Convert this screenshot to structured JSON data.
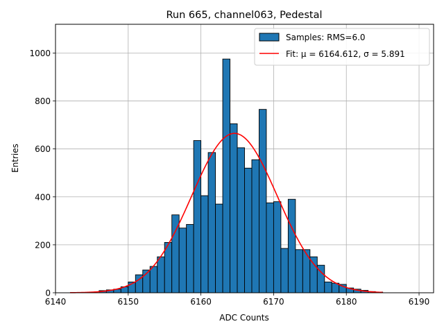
{
  "chart_data": {
    "type": "bar",
    "title": "Run 665, channel063, Pedestal",
    "xlabel": "ADC Counts",
    "ylabel": "Entries",
    "xlim": [
      6140,
      6192
    ],
    "ylim": [
      0,
      1120
    ],
    "xticks": [
      6140,
      6150,
      6160,
      6170,
      6180,
      6190
    ],
    "yticks": [
      0,
      200,
      400,
      600,
      800,
      1000
    ],
    "grid": true,
    "legend_position": "top-right",
    "hist": {
      "name": "Samples: RMS=6.0",
      "color": "#1f77b4",
      "edge_color": "#000000",
      "bin_edges": [
        6146,
        6147,
        6148,
        6149,
        6150,
        6151,
        6152,
        6153,
        6154,
        6155,
        6156,
        6157,
        6158,
        6159,
        6160,
        6161,
        6162,
        6163,
        6164,
        6165,
        6166,
        6167,
        6168,
        6169,
        6170,
        6171,
        6172,
        6173,
        6174,
        6175,
        6176,
        6177,
        6178,
        6179,
        6180,
        6181,
        6182,
        6183,
        6184,
        6185
      ],
      "counts": [
        9,
        12,
        15,
        25,
        45,
        75,
        95,
        110,
        150,
        210,
        325,
        270,
        285,
        635,
        405,
        585,
        370,
        975,
        705,
        605,
        520,
        555,
        765,
        375,
        380,
        185,
        390,
        180,
        180,
        150,
        115,
        45,
        40,
        35,
        20,
        15,
        10,
        5,
        3
      ]
    },
    "fit": {
      "name": "Fit: μ = 6164.612, σ = 5.891",
      "color": "#ff0000",
      "mu": 6164.612,
      "sigma": 5.891,
      "amplitude": 665,
      "x_range": [
        6142,
        6185
      ]
    }
  }
}
